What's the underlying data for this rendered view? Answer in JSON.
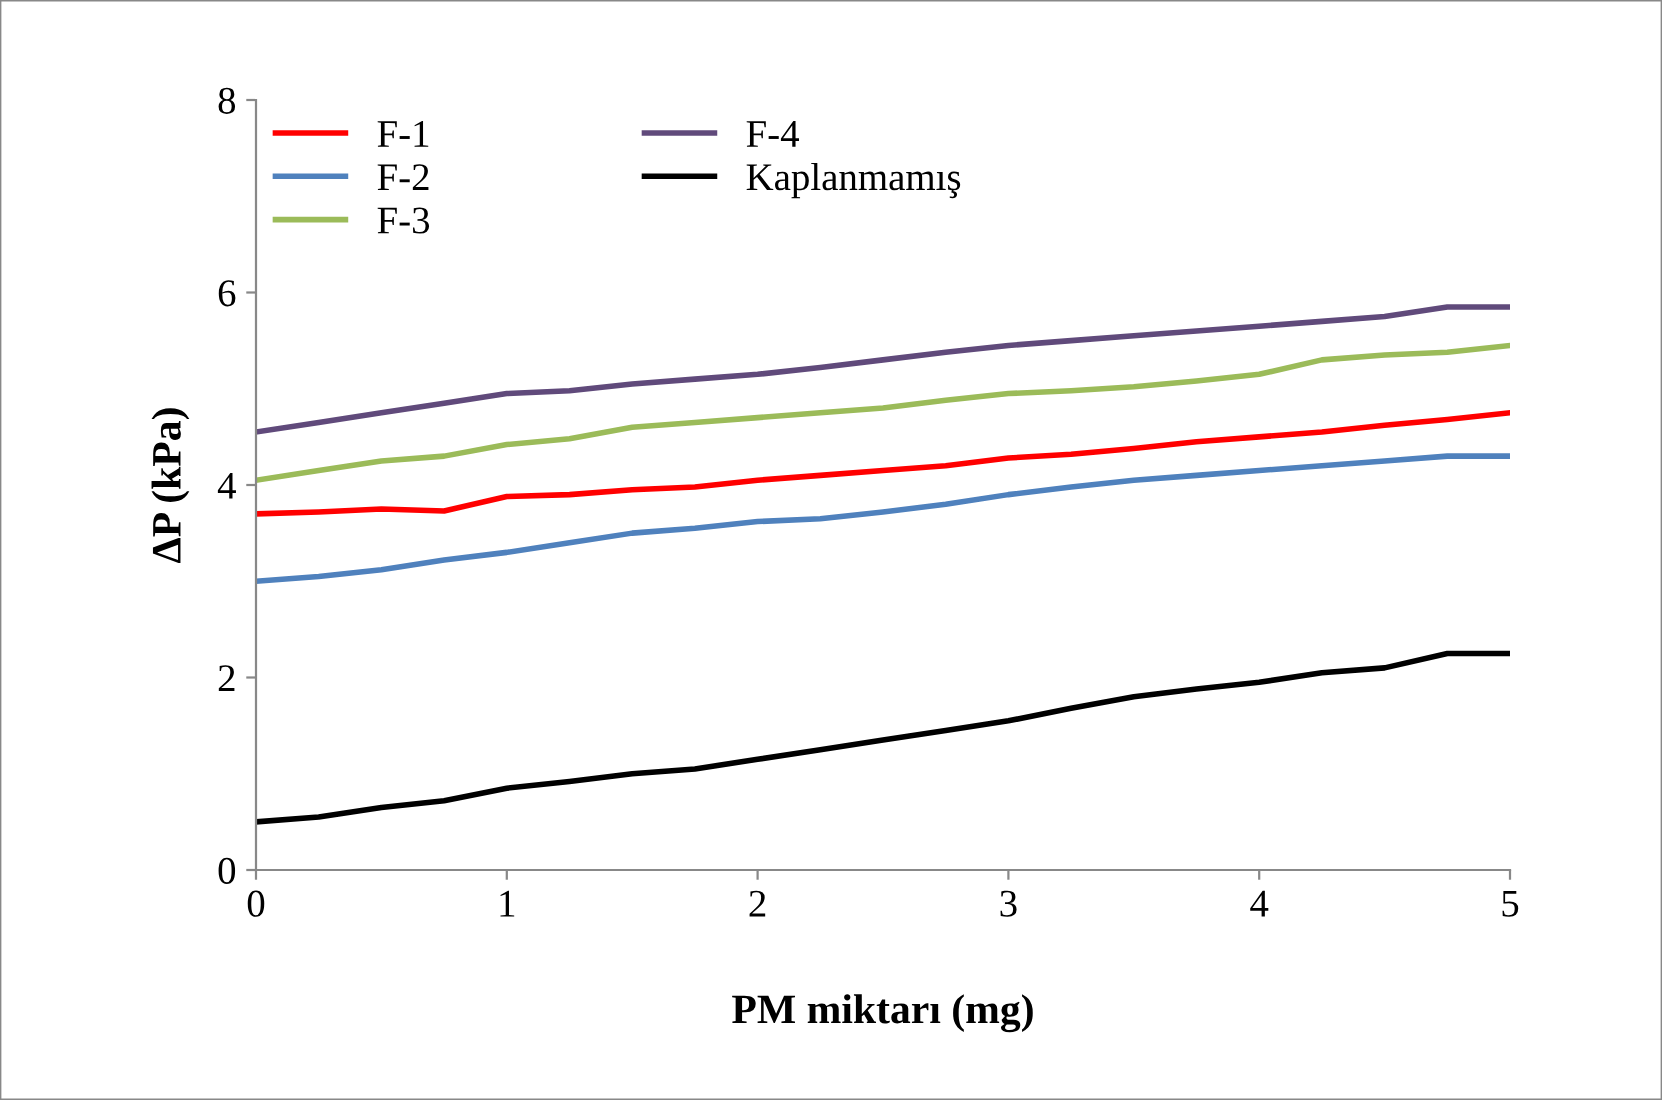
{
  "chart_data": {
    "type": "line",
    "xlabel": "PM miktarı (mg)",
    "ylabel": "ΔP (kPa)",
    "x": [
      0,
      0.25,
      0.5,
      0.75,
      1,
      1.25,
      1.5,
      1.75,
      2,
      2.25,
      2.5,
      2.75,
      3,
      3.25,
      3.5,
      3.75,
      4,
      4.25,
      4.5,
      4.75,
      5
    ],
    "xlim": [
      0,
      5
    ],
    "ylim": [
      0,
      8
    ],
    "xticks": [
      0,
      1,
      2,
      3,
      4,
      5
    ],
    "yticks": [
      0,
      2,
      4,
      6,
      8
    ],
    "grid": false,
    "legend": "top left",
    "line_style": "solid",
    "marker": "none",
    "series": [
      {
        "name": "F-1",
        "color": "#ff0000",
        "values": [
          3.7,
          3.72,
          3.75,
          3.73,
          3.88,
          3.9,
          3.95,
          3.98,
          4.05,
          4.1,
          4.15,
          4.2,
          4.28,
          4.32,
          4.38,
          4.45,
          4.5,
          4.55,
          4.62,
          4.68,
          4.75
        ]
      },
      {
        "name": "F-2",
        "color": "#4f81bd",
        "values": [
          3.0,
          3.05,
          3.12,
          3.22,
          3.3,
          3.4,
          3.5,
          3.55,
          3.62,
          3.65,
          3.72,
          3.8,
          3.9,
          3.98,
          4.05,
          4.1,
          4.15,
          4.2,
          4.25,
          4.3,
          4.3
        ]
      },
      {
        "name": "F-3",
        "color": "#9bbb59",
        "values": [
          4.05,
          4.15,
          4.25,
          4.3,
          4.42,
          4.48,
          4.6,
          4.65,
          4.7,
          4.75,
          4.8,
          4.88,
          4.95,
          4.98,
          5.02,
          5.08,
          5.15,
          5.3,
          5.35,
          5.38,
          5.45
        ]
      },
      {
        "name": "F-4",
        "color": "#604a7b",
        "values": [
          4.55,
          4.65,
          4.75,
          4.85,
          4.95,
          4.98,
          5.05,
          5.1,
          5.15,
          5.22,
          5.3,
          5.38,
          5.45,
          5.5,
          5.55,
          5.6,
          5.65,
          5.7,
          5.75,
          5.85,
          5.85
        ]
      },
      {
        "name": "Kaplanmamış",
        "color": "#000000",
        "values": [
          0.5,
          0.55,
          0.65,
          0.72,
          0.85,
          0.92,
          1.0,
          1.05,
          1.15,
          1.25,
          1.35,
          1.45,
          1.55,
          1.68,
          1.8,
          1.88,
          1.95,
          2.05,
          2.1,
          2.25,
          2.25
        ]
      }
    ]
  }
}
